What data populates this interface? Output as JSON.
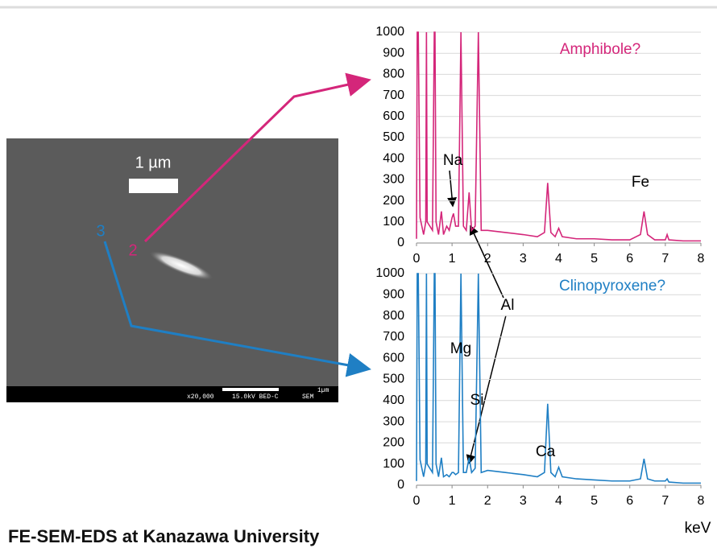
{
  "title": "FE-SEM-EDS at Kanazawa University",
  "image": {
    "scale_label": "1 µm",
    "points": [
      "2",
      "3"
    ],
    "databar": [
      "x20,000",
      "15.0kV BED-C",
      "SEM",
      "1µm"
    ]
  },
  "chart_data": [
    {
      "type": "line",
      "x": [
        0,
        0.02,
        0.05,
        0.1,
        0.2,
        0.26,
        0.28,
        0.3,
        0.45,
        0.5,
        0.52,
        0.55,
        0.62,
        0.7,
        0.76,
        0.85,
        0.92,
        1.0,
        1.04,
        1.1,
        1.18,
        1.25,
        1.32,
        1.4,
        1.48,
        1.55,
        1.65,
        1.74,
        1.82,
        2.0,
        2.5,
        3.0,
        3.4,
        3.6,
        3.69,
        3.78,
        3.9,
        4.0,
        4.1,
        4.5,
        5.0,
        5.5,
        6.0,
        6.3,
        6.4,
        6.5,
        6.7,
        7.0,
        7.05,
        7.1,
        7.5,
        8.0
      ],
      "series": [
        {
          "name": "Amphibole?",
          "color": "#d4267a",
          "values": [
            20,
            1000,
            1000,
            120,
            40,
            100,
            1000,
            100,
            60,
            1000,
            1000,
            100,
            40,
            150,
            40,
            80,
            60,
            120,
            140,
            80,
            80,
            1000,
            80,
            60,
            240,
            60,
            80,
            1000,
            60,
            60,
            50,
            40,
            30,
            50,
            285,
            50,
            30,
            70,
            30,
            20,
            20,
            15,
            15,
            40,
            150,
            40,
            15,
            15,
            40,
            15,
            10,
            10
          ]
        }
      ],
      "xlim": [
        0,
        8
      ],
      "xticks": [
        0,
        1,
        2,
        3,
        4,
        5,
        6,
        7,
        8
      ],
      "ylim": [
        0,
        1000
      ],
      "yticks": [
        0,
        100,
        200,
        300,
        400,
        500,
        600,
        700,
        800,
        900,
        1000
      ],
      "grid": true,
      "annotations": [
        "Na",
        "Fe",
        "Al"
      ]
    },
    {
      "type": "line",
      "x": [
        0,
        0.02,
        0.05,
        0.1,
        0.2,
        0.26,
        0.28,
        0.3,
        0.45,
        0.5,
        0.52,
        0.55,
        0.62,
        0.7,
        0.76,
        0.85,
        0.92,
        1.0,
        1.04,
        1.1,
        1.18,
        1.25,
        1.32,
        1.4,
        1.48,
        1.55,
        1.65,
        1.74,
        1.82,
        2.0,
        2.5,
        3.0,
        3.4,
        3.6,
        3.69,
        3.78,
        3.9,
        4.0,
        4.1,
        4.5,
        5.0,
        5.5,
        6.0,
        6.3,
        6.4,
        6.5,
        6.7,
        7.0,
        7.05,
        7.1,
        7.5,
        8.0
      ],
      "series": [
        {
          "name": "Clinopyroxene?",
          "color": "#1f7fc4",
          "values": [
            20,
            1000,
            1000,
            120,
            40,
            100,
            1000,
            100,
            60,
            1000,
            1000,
            100,
            40,
            130,
            40,
            50,
            40,
            60,
            60,
            50,
            60,
            1000,
            60,
            60,
            130,
            60,
            80,
            1000,
            60,
            70,
            60,
            50,
            40,
            60,
            385,
            60,
            40,
            85,
            40,
            30,
            25,
            20,
            20,
            30,
            125,
            30,
            20,
            20,
            30,
            15,
            10,
            10
          ]
        }
      ],
      "xlim": [
        0,
        8
      ],
      "xticks": [
        0,
        1,
        2,
        3,
        4,
        5,
        6,
        7,
        8
      ],
      "ylim": [
        0,
        1000
      ],
      "yticks": [
        0,
        100,
        200,
        300,
        400,
        500,
        600,
        700,
        800,
        900,
        1000
      ],
      "grid": true,
      "xlabel": "keV",
      "annotations": [
        "Mg",
        "Si",
        "Ca"
      ]
    }
  ]
}
